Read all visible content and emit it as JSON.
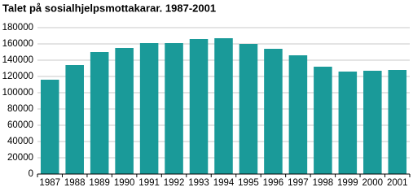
{
  "chart_data": {
    "type": "bar",
    "title": "Talet på sosialhjelpsmottakarar. 1987-2001",
    "categories": [
      "1987",
      "1988",
      "1989",
      "1990",
      "1991",
      "1992",
      "1993",
      "1994",
      "1995",
      "1996",
      "1997",
      "1998",
      "1999",
      "2000",
      "2001"
    ],
    "values": [
      116000,
      134000,
      150000,
      155000,
      161000,
      161000,
      166000,
      167000,
      160000,
      154000,
      146000,
      132000,
      126000,
      127000,
      128000
    ],
    "color": "#1a9a99",
    "ylim": [
      0,
      180000
    ],
    "yticks": [
      0,
      20000,
      40000,
      60000,
      80000,
      100000,
      120000,
      140000,
      160000,
      180000
    ],
    "grid": true
  }
}
